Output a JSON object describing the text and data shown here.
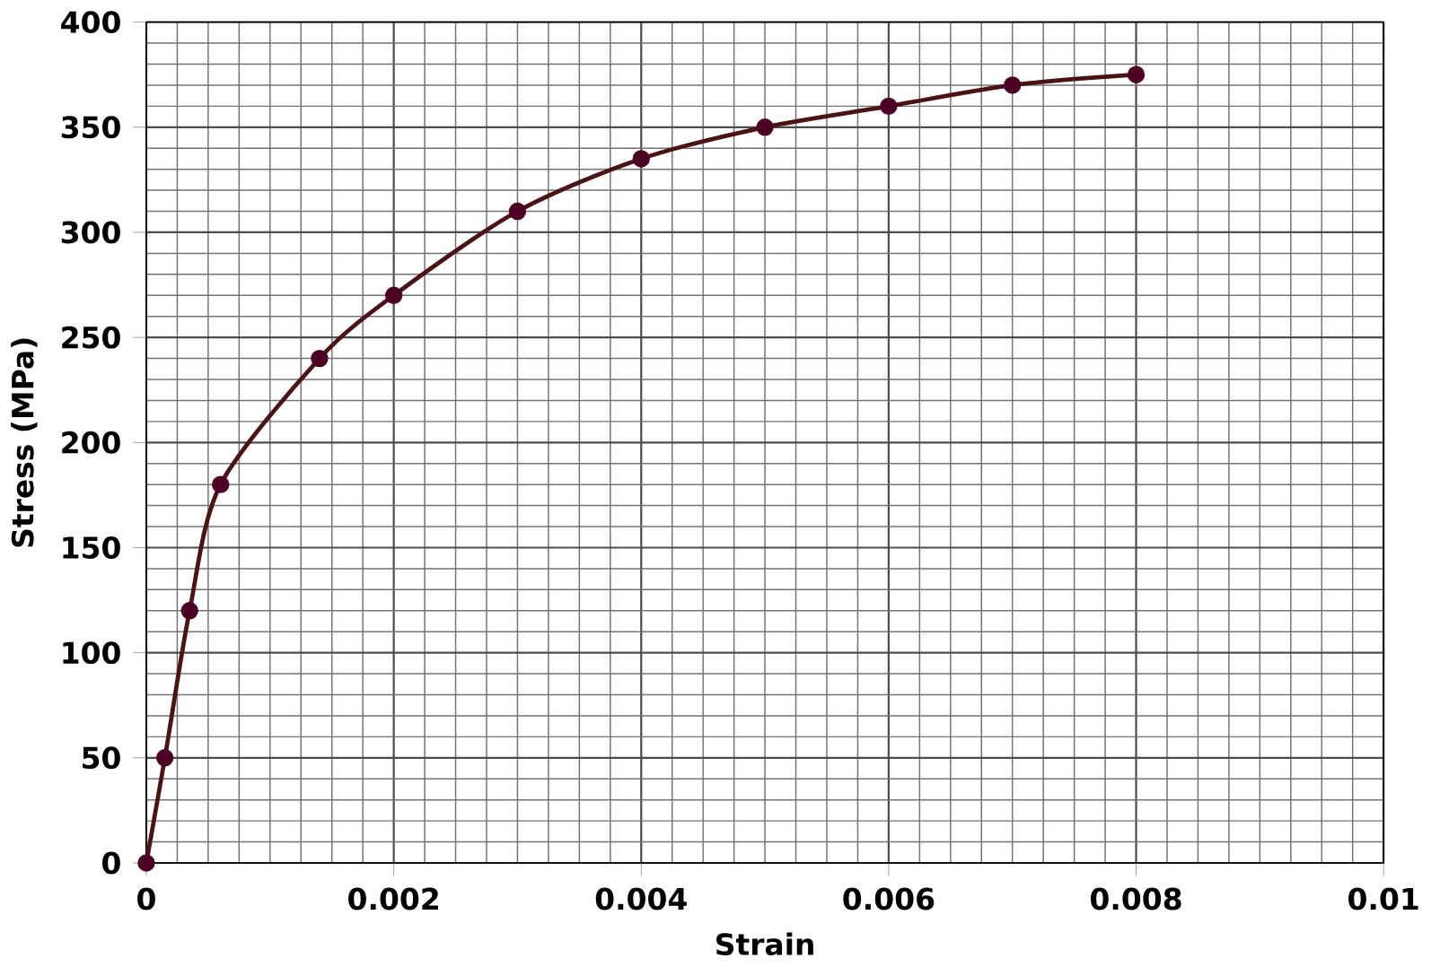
{
  "chart_data": {
    "type": "line",
    "xlabel": "Strain",
    "ylabel": "Stress (MPa)",
    "x": [
      0,
      0.00015,
      0.00035,
      0.0006,
      0.0014,
      0.002,
      0.003,
      0.004,
      0.005,
      0.006,
      0.007,
      0.008
    ],
    "series": [
      {
        "color": "#4a1414",
        "values": [
          0,
          50,
          120,
          180,
          240,
          270,
          310,
          335,
          350,
          360,
          370,
          375
        ]
      }
    ],
    "xlim": [
      0,
      0.01
    ],
    "ylim": [
      0,
      400
    ],
    "xticks": [
      0,
      0.002,
      0.004,
      0.006,
      0.008,
      0.01
    ],
    "yticks": [
      0,
      50,
      100,
      150,
      200,
      250,
      300,
      350,
      400
    ],
    "grid": true,
    "marker": "circle",
    "line_style": "solid"
  }
}
